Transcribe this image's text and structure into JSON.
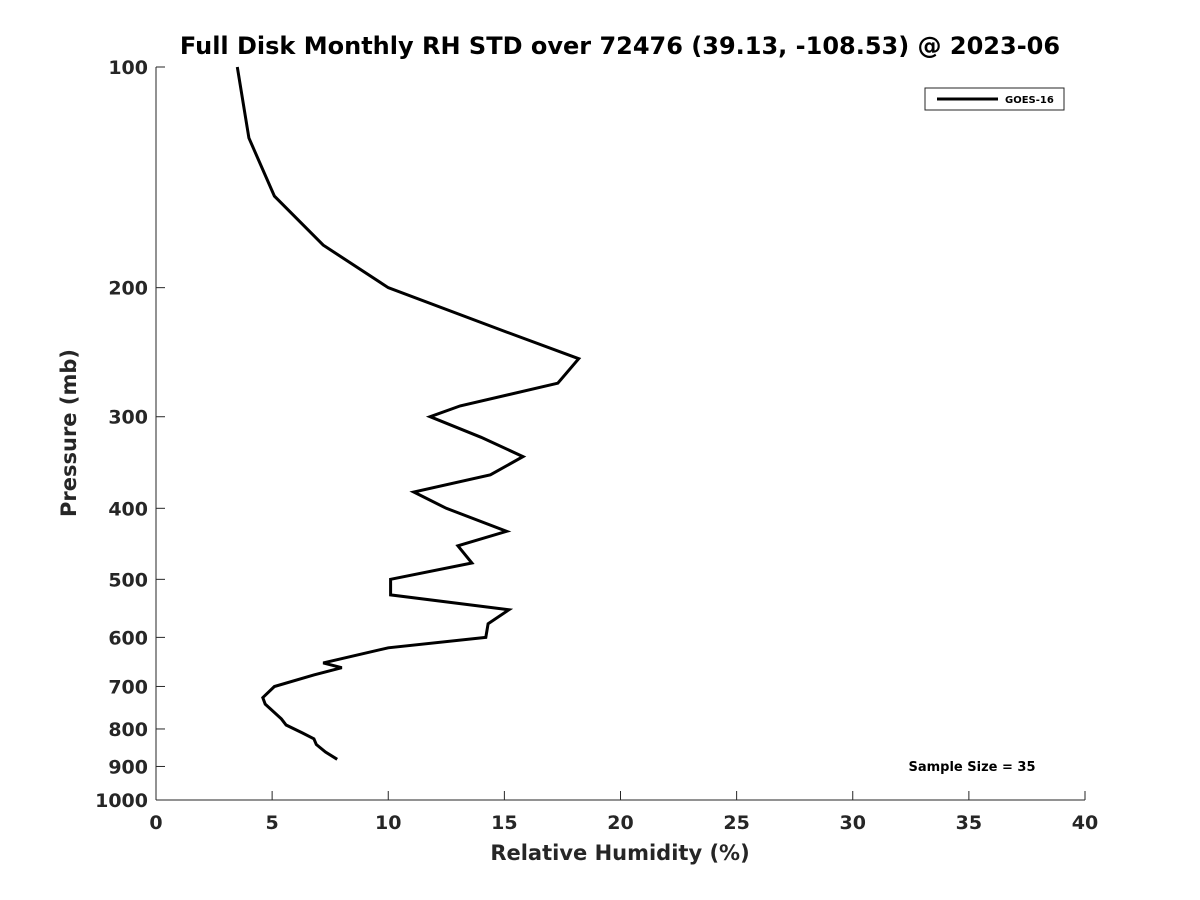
{
  "chart_data": {
    "type": "line",
    "title": "Full Disk Monthly RH STD over 72476 (39.13, -108.53) @ 2023-06",
    "xlabel": "Relative Humidity (%)",
    "ylabel": "Pressure (mb)",
    "xlim": [
      0,
      40
    ],
    "ylim": [
      100,
      1000
    ],
    "y_scale": "log",
    "y_reversed": true,
    "xticks": [
      0,
      5,
      10,
      15,
      20,
      25,
      30,
      35,
      40
    ],
    "yticks": [
      100,
      200,
      300,
      400,
      500,
      600,
      700,
      800,
      900,
      1000
    ],
    "grid": false,
    "legend_position": "top-right",
    "series": [
      {
        "name": "GOES-16",
        "color": "#000000",
        "points": [
          {
            "rh": 3.5,
            "p": 100
          },
          {
            "rh": 4.0,
            "p": 125
          },
          {
            "rh": 5.1,
            "p": 150
          },
          {
            "rh": 7.2,
            "p": 175
          },
          {
            "rh": 10.0,
            "p": 200
          },
          {
            "rh": 15.1,
            "p": 230
          },
          {
            "rh": 18.2,
            "p": 250
          },
          {
            "rh": 17.3,
            "p": 270
          },
          {
            "rh": 13.1,
            "p": 290
          },
          {
            "rh": 11.8,
            "p": 300
          },
          {
            "rh": 14.0,
            "p": 320
          },
          {
            "rh": 15.8,
            "p": 340
          },
          {
            "rh": 14.4,
            "p": 360
          },
          {
            "rh": 11.1,
            "p": 380
          },
          {
            "rh": 12.5,
            "p": 400
          },
          {
            "rh": 15.1,
            "p": 430
          },
          {
            "rh": 13.0,
            "p": 450
          },
          {
            "rh": 13.6,
            "p": 475
          },
          {
            "rh": 10.1,
            "p": 500
          },
          {
            "rh": 10.1,
            "p": 525
          },
          {
            "rh": 15.2,
            "p": 550
          },
          {
            "rh": 14.3,
            "p": 575
          },
          {
            "rh": 14.2,
            "p": 600
          },
          {
            "rh": 10.0,
            "p": 620
          },
          {
            "rh": 7.2,
            "p": 650
          },
          {
            "rh": 8.0,
            "p": 660
          },
          {
            "rh": 6.8,
            "p": 675
          },
          {
            "rh": 5.1,
            "p": 700
          },
          {
            "rh": 4.6,
            "p": 725
          },
          {
            "rh": 4.7,
            "p": 740
          },
          {
            "rh": 5.4,
            "p": 775
          },
          {
            "rh": 5.6,
            "p": 790
          },
          {
            "rh": 6.3,
            "p": 810
          },
          {
            "rh": 6.8,
            "p": 825
          },
          {
            "rh": 6.9,
            "p": 840
          },
          {
            "rh": 7.3,
            "p": 860
          },
          {
            "rh": 7.8,
            "p": 880
          }
        ]
      }
    ],
    "legend": [
      "GOES-16"
    ],
    "annotation": "Sample Size = 35"
  }
}
